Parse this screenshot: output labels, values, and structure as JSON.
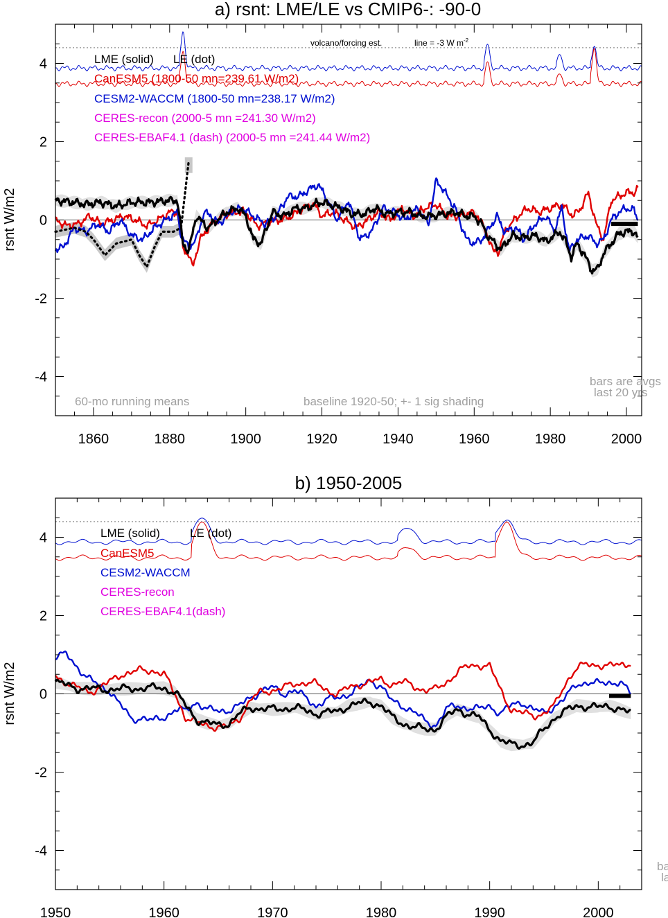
{
  "colors": {
    "black": "#000000",
    "red": "#e00000",
    "blue": "#0010d0",
    "magenta": "#e000e0",
    "shade": "#c8c8c8",
    "note": "#a0a0a0"
  },
  "chart_data": [
    {
      "type": "line",
      "title": "a) rsnt: LME/LE vs CMIP6-: -90-0",
      "ylabel": "rsnt W/m2",
      "xlim": [
        1850,
        2004
      ],
      "ylim": [
        -5,
        5
      ],
      "x_ticks": [
        1860,
        1880,
        1900,
        1920,
        1940,
        1960,
        1980,
        2000
      ],
      "y_ticks": [
        -4,
        -2,
        0,
        2,
        4
      ],
      "reference_line": 4.4,
      "reference_note": "volcano/forcing est.",
      "reference_line_text": "line = -3 W m",
      "reference_line_sup": "-2",
      "legend": [
        "LME (solid)",
        "LE (dot)",
        "CanESM5 (1800-50 mn=239.61 W/m2)",
        "CESM2-WACCM (1800-50 mn=238.17 W/m2)",
        "CERES-recon (2000-5 mn =241.30 W/m2)",
        "CERES-EBAF4.1 (dash) (2000-5 mn =241.44 W/m2)"
      ],
      "notes": [
        "60-mo running means",
        "baseline 1920-50; +- 1 sig shading",
        "bars are avgs",
        "last 20 yrs"
      ],
      "series": [
        {
          "name": "LME (solid)",
          "x": [
            1850,
            1855,
            1858,
            1862,
            1866,
            1870,
            1875,
            1880,
            1882,
            1883.5,
            1885,
            1887,
            1890,
            1895,
            1898,
            1900,
            1902,
            1904,
            1907,
            1910,
            1913,
            1916,
            1918,
            1920,
            1922,
            1925,
            1928,
            1931,
            1934,
            1937,
            1940,
            1943,
            1946,
            1949,
            1952,
            1955,
            1958,
            1960,
            1962,
            1963.5,
            1965,
            1967,
            1970,
            1973,
            1976,
            1979,
            1981,
            1982.5,
            1984,
            1985.5,
            1987,
            1989,
            1991,
            1992.5,
            1994,
            1996,
            1998,
            2000,
            2002,
            2003
          ],
          "y": [
            0.5,
            0.45,
            0.4,
            0.45,
            0.35,
            0.45,
            0.45,
            0.5,
            0.5,
            -0.6,
            -0.8,
            0.1,
            -0.2,
            0.2,
            0.3,
            0.1,
            -0.5,
            -0.6,
            0.2,
            0.1,
            0.3,
            0.3,
            0.4,
            0.45,
            0.4,
            0.3,
            0.15,
            0.15,
            0.3,
            0.15,
            0.2,
            0.2,
            0.1,
            0.1,
            0.15,
            0.2,
            0.1,
            0.1,
            -0.1,
            -0.4,
            -0.55,
            -0.75,
            -0.4,
            -0.45,
            -0.4,
            -0.55,
            -0.4,
            -0.3,
            -0.55,
            -0.95,
            -0.6,
            -0.9,
            -1.3,
            -1.25,
            -0.85,
            -0.6,
            -0.35,
            -0.3,
            -0.3,
            -0.45
          ]
        },
        {
          "name": "LE (dot)",
          "x": [
            1850,
            1855,
            1858,
            1860,
            1863,
            1866,
            1870,
            1872,
            1874,
            1876,
            1878,
            1881,
            1883,
            1885
          ],
          "y": [
            -0.3,
            -0.2,
            -0.3,
            -0.5,
            -0.9,
            -0.6,
            -0.5,
            -0.9,
            -1.2,
            -0.7,
            -0.3,
            -0.3,
            -0.2,
            1.5
          ]
        },
        {
          "name": "CanESM5",
          "x": [
            1850,
            1853,
            1856,
            1859,
            1862,
            1865,
            1868,
            1871,
            1874,
            1877,
            1880,
            1882,
            1883.5,
            1885,
            1886,
            1888,
            1891,
            1894,
            1897,
            1900,
            1903,
            1906,
            1909,
            1912,
            1915,
            1918,
            1920,
            1923,
            1926,
            1929,
            1932,
            1935,
            1938,
            1941,
            1944,
            1947,
            1950,
            1953,
            1956,
            1959,
            1961,
            1963.5,
            1965,
            1966.5,
            1968,
            1971,
            1974,
            1977,
            1980,
            1983,
            1986,
            1988,
            1990,
            1992,
            1994,
            1996,
            1998,
            2000,
            2002,
            2003
          ],
          "y": [
            0.0,
            -0.15,
            -0.1,
            0.1,
            -0.1,
            0.0,
            0.1,
            0.0,
            -0.15,
            0.0,
            0.2,
            0.2,
            -0.7,
            -0.9,
            -1.2,
            -0.5,
            -0.1,
            0.1,
            0.2,
            0.2,
            -0.15,
            -0.05,
            0.0,
            0.1,
            0.3,
            0.4,
            0.1,
            0.2,
            0.0,
            -0.2,
            0.0,
            0.2,
            0.0,
            0.3,
            0.1,
            0.3,
            0.4,
            0.1,
            0.1,
            0.2,
            0.1,
            -0.4,
            -0.8,
            -0.8,
            -0.3,
            0.05,
            0.3,
            0.2,
            0.3,
            0.4,
            0.1,
            0.3,
            0.7,
            -0.1,
            -0.5,
            0.5,
            0.6,
            0.7,
            0.7,
            0.8
          ]
        },
        {
          "name": "CESM2-WACCM",
          "x": [
            1850,
            1852,
            1855,
            1858,
            1861,
            1864,
            1867,
            1870,
            1873,
            1876,
            1879,
            1882,
            1883,
            1885,
            1887,
            1889,
            1891,
            1893,
            1896,
            1899,
            1902,
            1905,
            1908,
            1911,
            1914,
            1917,
            1919,
            1921,
            1924,
            1927,
            1930,
            1933,
            1936,
            1939,
            1942,
            1945,
            1948,
            1950,
            1951,
            1953,
            1955,
            1958,
            1960,
            1962,
            1964,
            1966,
            1968,
            1971,
            1973,
            1976,
            1979,
            1981,
            1983,
            1985,
            1987,
            1990,
            1992,
            1994,
            1996,
            1998,
            2000,
            2002,
            2003
          ],
          "y": [
            -0.75,
            -0.7,
            -0.2,
            -0.3,
            -0.1,
            -0.3,
            0.0,
            -0.4,
            -0.5,
            -0.2,
            0.0,
            0.2,
            -0.4,
            -0.7,
            -0.5,
            0.2,
            0.1,
            -0.1,
            0.2,
            0.3,
            0.1,
            -0.1,
            0.1,
            0.6,
            0.6,
            0.8,
            0.9,
            0.6,
            0.0,
            0.5,
            -0.5,
            -0.3,
            0.3,
            0.2,
            0.0,
            0.3,
            -0.1,
            1.0,
            0.9,
            0.6,
            0.3,
            -0.5,
            -0.6,
            -0.5,
            -0.2,
            0.1,
            -0.3,
            -0.2,
            -0.5,
            -0.1,
            0.1,
            -0.3,
            0.3,
            -0.8,
            -0.5,
            -0.4,
            -0.6,
            -0.5,
            0.0,
            0.2,
            0.3,
            0.25,
            0.0
          ]
        }
      ],
      "bars": [
        {
          "name": "LME",
          "x0": 1996,
          "x1": 2003,
          "value": -0.1
        }
      ]
    },
    {
      "type": "line",
      "title": "b) 1950-2005",
      "ylabel": "rsnt W/m2",
      "xlim": [
        1950,
        2004
      ],
      "ylim": [
        -5,
        5
      ],
      "x_ticks": [
        1950,
        1960,
        1970,
        1980,
        1990,
        2000
      ],
      "y_ticks": [
        -4,
        -2,
        0,
        2,
        4
      ],
      "reference_line": 4.4,
      "legend": [
        "LME (solid)",
        "LE (dot)",
        "CanESM5",
        "CESM2-WACCM",
        "CERES-recon",
        "CERES-EBAF4.1(dash)"
      ],
      "notes": [
        "ba",
        "la"
      ],
      "series": [
        {
          "name": "LME (solid)",
          "x": [
            1950,
            1952,
            1954,
            1956,
            1958,
            1960,
            1961,
            1962,
            1963,
            1964,
            1965,
            1966,
            1967,
            1968,
            1970,
            1972,
            1974,
            1976,
            1977,
            1978,
            1979,
            1980,
            1981,
            1982,
            1983,
            1984,
            1985,
            1986,
            1987,
            1988,
            1989,
            1990,
            1991,
            1992,
            1993,
            1994,
            1995,
            1996,
            1997,
            1998,
            2000,
            2001,
            2002,
            2003
          ],
          "y": [
            0.3,
            0.15,
            0.12,
            0.12,
            0.15,
            0.15,
            0.05,
            -0.3,
            -0.65,
            -0.75,
            -0.8,
            -0.75,
            -0.5,
            -0.35,
            -0.4,
            -0.35,
            -0.5,
            -0.45,
            -0.3,
            -0.25,
            -0.2,
            -0.3,
            -0.6,
            -0.75,
            -0.85,
            -0.9,
            -0.9,
            -0.6,
            -0.4,
            -0.5,
            -0.6,
            -0.9,
            -1.2,
            -1.3,
            -1.3,
            -1.25,
            -0.9,
            -0.6,
            -0.45,
            -0.3,
            -0.35,
            -0.3,
            -0.4,
            -0.5
          ]
        },
        {
          "name": "CanESM5",
          "x": [
            1950,
            1951,
            1952,
            1953,
            1954,
            1955,
            1956,
            1957,
            1958,
            1959,
            1960,
            1961,
            1962,
            1963,
            1964,
            1965,
            1966,
            1967,
            1968,
            1969,
            1970,
            1971,
            1972,
            1973,
            1974,
            1975,
            1976,
            1977,
            1978,
            1979,
            1980,
            1981,
            1982,
            1983,
            1984,
            1985,
            1986,
            1987,
            1988,
            1989,
            1990,
            1991,
            1992,
            1993,
            1994,
            1995,
            1996,
            1997,
            1998,
            1999,
            2000,
            2001,
            2002,
            2003
          ],
          "y": [
            0.45,
            0.3,
            0.15,
            0.05,
            0.15,
            0.3,
            0.5,
            0.55,
            0.6,
            0.6,
            0.5,
            0.0,
            -0.6,
            -0.75,
            -0.8,
            -0.85,
            -0.85,
            -0.6,
            -0.15,
            0.05,
            0.1,
            0.15,
            0.25,
            0.3,
            0.25,
            0.1,
            0.0,
            0.15,
            0.25,
            0.3,
            0.35,
            0.25,
            0.3,
            0.2,
            0.1,
            0.1,
            0.3,
            0.55,
            0.7,
            0.75,
            0.7,
            0.1,
            -0.4,
            -0.5,
            -0.55,
            -0.5,
            -0.3,
            0.3,
            0.65,
            0.75,
            0.75,
            0.7,
            0.75,
            0.8
          ]
        },
        {
          "name": "CESM2-WACCM",
          "x": [
            1950,
            1951,
            1952,
            1953,
            1954,
            1955,
            1956,
            1957,
            1958,
            1959,
            1960,
            1961,
            1962,
            1963,
            1964,
            1965,
            1966,
            1967,
            1968,
            1969,
            1970,
            1971,
            1972,
            1973,
            1974,
            1975,
            1976,
            1977,
            1978,
            1979,
            1980,
            1981,
            1982,
            1983,
            1984,
            1985,
            1986,
            1987,
            1988,
            1989,
            1990,
            1991,
            1992,
            1993,
            1994,
            1995,
            1996,
            1997,
            1998,
            1999,
            2000,
            2001,
            2002,
            2003
          ],
          "y": [
            0.95,
            1.0,
            0.7,
            0.4,
            0.2,
            0.1,
            -0.3,
            -0.65,
            -0.6,
            -0.7,
            -0.6,
            -0.4,
            -0.45,
            -0.2,
            -0.4,
            -0.45,
            -0.4,
            -0.3,
            -0.1,
            0.1,
            0.15,
            0.0,
            0.1,
            -0.1,
            -0.3,
            -0.15,
            -0.1,
            0.0,
            0.15,
            0.35,
            0.2,
            -0.2,
            -0.3,
            -0.45,
            -0.7,
            -0.8,
            -0.4,
            -0.3,
            -0.35,
            -0.4,
            -0.3,
            -0.5,
            -0.3,
            -0.2,
            -0.4,
            -0.5,
            -0.3,
            -0.1,
            0.25,
            0.3,
            0.25,
            0.3,
            0.3,
            0.0
          ]
        }
      ],
      "bars": [
        {
          "name": "LME",
          "x0": 2001,
          "x1": 2003,
          "value": -0.05
        }
      ]
    }
  ]
}
